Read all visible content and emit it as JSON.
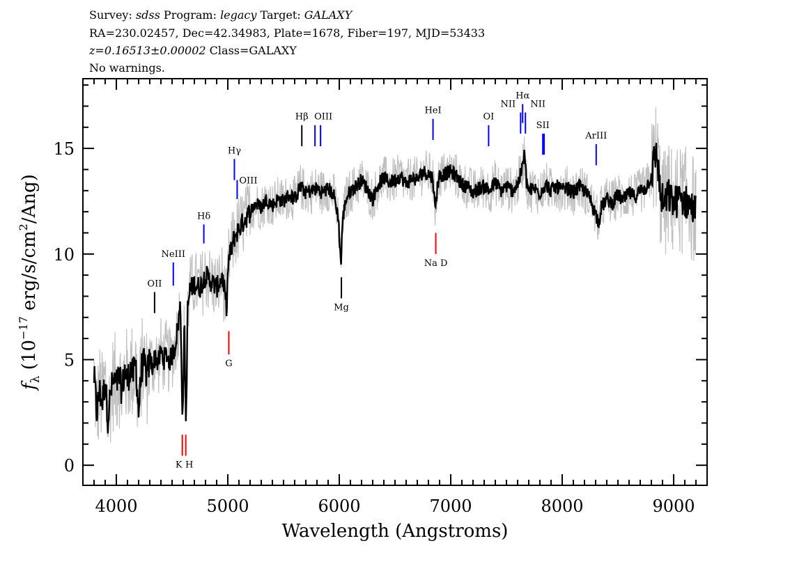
{
  "header": {
    "survey_label": "Survey:",
    "survey": "sdss",
    "program_label": "Program:",
    "program": "legacy",
    "target_label": "Target:",
    "target": "GALAXY",
    "line2": "RA=230.02457, Dec=42.34983, Plate=1678, Fiber=197, MJD=53433",
    "redshift": "z=0.16513±0.00002",
    "class": "Class=GALAXY",
    "warnings": "No warnings."
  },
  "chart_data": {
    "type": "line",
    "xlabel": "Wavelength (Angstroms)",
    "ylabel_parts": {
      "f": "f",
      "sub": "λ",
      "pre": " (10",
      "exp1": "−17",
      "mid": " erg/s/cm",
      "exp2": "2",
      "post": "/Ang)"
    },
    "xlim": [
      3700,
      9300
    ],
    "ylim": [
      -0.95,
      18.3
    ],
    "xticks": [
      "4000",
      "5000",
      "6000",
      "7000",
      "8000",
      "9000"
    ],
    "yticks": [
      "0",
      "5",
      "10",
      "15"
    ],
    "grid": false,
    "colors": {
      "flux": "#000000",
      "noise": "#c0c0c0",
      "emission": "#0000ff",
      "absorption": "#ff0000",
      "other": "#000000"
    },
    "series": [
      {
        "role": "flux",
        "x": [
          3800,
          3825,
          3850,
          3875,
          3900,
          3925,
          3950,
          3975,
          4000,
          4025,
          4050,
          4075,
          4100,
          4125,
          4150,
          4175,
          4200,
          4225,
          4250,
          4275,
          4300,
          4325,
          4350,
          4375,
          4400,
          4425,
          4450,
          4475,
          4500,
          4525,
          4550,
          4575,
          4595,
          4610,
          4625,
          4640,
          4660,
          4700,
          4750,
          4800,
          4850,
          4900,
          4950,
          4990,
          5005,
          5030,
          5060,
          5100,
          5150,
          5200,
          5250,
          5300,
          5350,
          5400,
          5450,
          5500,
          5550,
          5600,
          5650,
          5700,
          5750,
          5800,
          5850,
          5900,
          5950,
          5990,
          6015,
          6030,
          6060,
          6100,
          6150,
          6200,
          6250,
          6300,
          6350,
          6400,
          6450,
          6500,
          6550,
          6600,
          6650,
          6700,
          6750,
          6800,
          6840,
          6860,
          6880,
          6900,
          6950,
          7000,
          7050,
          7100,
          7150,
          7200,
          7250,
          7300,
          7350,
          7400,
          7450,
          7500,
          7550,
          7600,
          7640,
          7660,
          7680,
          7700,
          7750,
          7800,
          7850,
          7900,
          7950,
          8000,
          8050,
          8100,
          8150,
          8200,
          8250,
          8300,
          8330,
          8350,
          8400,
          8450,
          8500,
          8550,
          8600,
          8650,
          8700,
          8750,
          8800,
          8830,
          8850,
          8880,
          8920,
          8950,
          9000,
          9050,
          9100,
          9150,
          9200
        ],
        "y": [
          4.2,
          2.5,
          3.5,
          3.0,
          4.0,
          2.2,
          3.5,
          4.0,
          3.8,
          4.2,
          3.5,
          4.5,
          4.0,
          4.6,
          4.3,
          4.8,
          2.5,
          4.6,
          4.8,
          4.2,
          5.0,
          4.7,
          5.2,
          4.8,
          5.4,
          5.0,
          5.3,
          4.9,
          5.2,
          5.6,
          6.5,
          7.6,
          2.0,
          6.8,
          1.8,
          7.4,
          8.3,
          8.6,
          8.4,
          9.0,
          8.7,
          8.4,
          8.9,
          7.5,
          9.6,
          10.2,
          10.8,
          11.2,
          11.6,
          12.0,
          12.4,
          12.2,
          12.6,
          12.3,
          12.6,
          12.5,
          12.8,
          12.6,
          13.2,
          12.9,
          13.0,
          13.1,
          12.9,
          13.1,
          12.8,
          11.8,
          9.5,
          11.6,
          12.6,
          13.0,
          13.2,
          13.5,
          13.1,
          12.6,
          13.3,
          13.6,
          13.4,
          13.5,
          13.7,
          13.3,
          13.6,
          13.5,
          13.9,
          13.8,
          13.6,
          12.1,
          13.2,
          13.7,
          13.8,
          13.9,
          13.7,
          13.3,
          13.2,
          12.9,
          13.1,
          13.2,
          13.0,
          13.4,
          13.0,
          13.2,
          13.0,
          13.3,
          14.0,
          14.8,
          13.4,
          13.0,
          13.1,
          12.9,
          13.3,
          13.0,
          13.2,
          13.0,
          13.1,
          12.9,
          13.2,
          13.0,
          12.6,
          11.9,
          11.5,
          12.2,
          12.6,
          12.4,
          12.8,
          12.5,
          12.9,
          12.7,
          13.0,
          13.1,
          13.7,
          14.6,
          14.8,
          12.8,
          12.3,
          12.8,
          12.4,
          12.6,
          12.5,
          12.3,
          12.0
        ]
      }
    ],
    "line_markers": [
      {
        "label": "OII",
        "wavelength": 4343,
        "kind": "other",
        "top": 8.2,
        "bottom": 7.2
      },
      {
        "label": "NeIII",
        "wavelength": 4511,
        "kind": "emission",
        "top": 9.6,
        "bottom": 8.5
      },
      {
        "label": "Hδ",
        "wavelength": 4785,
        "kind": "emission",
        "top": 11.4,
        "bottom": 10.5
      },
      {
        "label": "Hγ",
        "wavelength": 5059,
        "kind": "emission",
        "top": 14.5,
        "bottom": 13.5
      },
      {
        "label": "OIII",
        "wavelength": 5084,
        "kind": "emission",
        "top": 13.5,
        "bottom": 12.6
      },
      {
        "label": "Hβ",
        "wavelength": 5664,
        "kind": "other",
        "top": 16.1,
        "bottom": 15.1
      },
      {
        "label": "OIII",
        "wavelength": 5782,
        "kind": "emission",
        "top": 16.1,
        "bottom": 15.1
      },
      {
        "label": "",
        "wavelength": 5832,
        "kind": "emission",
        "top": 16.1,
        "bottom": 15.1
      },
      {
        "label": "HeI",
        "wavelength": 6841,
        "kind": "emission",
        "top": 16.4,
        "bottom": 15.4
      },
      {
        "label": "OI",
        "wavelength": 7340,
        "kind": "emission",
        "top": 16.1,
        "bottom": 15.1
      },
      {
        "label": "NII",
        "wavelength": 7627,
        "kind": "emission",
        "top": 16.7,
        "bottom": 15.7
      },
      {
        "label": "Hα",
        "wavelength": 7645,
        "kind": "emission",
        "top": 17.1,
        "bottom": 16.2
      },
      {
        "label": "NII",
        "wavelength": 7670,
        "kind": "emission",
        "top": 16.7,
        "bottom": 15.7
      },
      {
        "label": "SII",
        "wavelength": 7826,
        "kind": "emission",
        "top": 15.7,
        "bottom": 14.7
      },
      {
        "label": "",
        "wavelength": 7838,
        "kind": "emission",
        "top": 15.7,
        "bottom": 14.7
      },
      {
        "label": "ArIII",
        "wavelength": 8305,
        "kind": "emission",
        "top": 15.2,
        "bottom": 14.2
      },
      {
        "label": "K",
        "wavelength": 4592,
        "kind": "absorption",
        "top": 1.45,
        "bottom": 0.45
      },
      {
        "label": "H",
        "wavelength": 4623,
        "kind": "absorption",
        "top": 1.45,
        "bottom": 0.45
      },
      {
        "label": "G",
        "wavelength": 5009,
        "kind": "absorption",
        "top": 6.35,
        "bottom": 5.25
      },
      {
        "label": "Mg",
        "wavelength": 6019,
        "kind": "other",
        "top": 8.9,
        "bottom": 7.9
      },
      {
        "label": "Na D",
        "wavelength": 6866,
        "kind": "absorption",
        "top": 11.0,
        "bottom": 10.0
      }
    ]
  }
}
